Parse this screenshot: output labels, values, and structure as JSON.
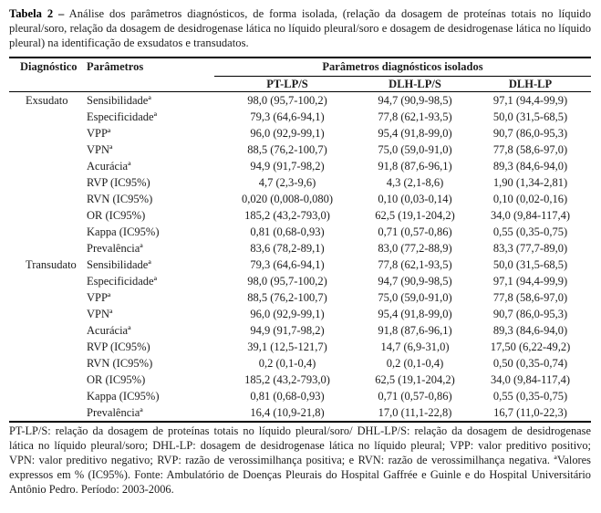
{
  "caption": {
    "label": "Tabela 2 –",
    "text": "Análise dos parâmetros diagnósticos, de forma isolada, (relação da dosagem de proteínas totais no líquido pleural/soro, relação da dosagem de desidrogenase lática no líquido pleural/soro e dosagem de desidrogenase lática no líquido pleural) na identificação de exsudatos e transudatos."
  },
  "table": {
    "header": {
      "diagnostico": "Diagnóstico",
      "parametros": "Parâmetros",
      "group_title": "Parâmetros diagnósticos isolados",
      "columns": [
        "PT-LP/S",
        "DLH-LP/S",
        "DLH-LP"
      ]
    },
    "groups": [
      {
        "diagnosis": "Exsudato",
        "rows": [
          {
            "param": "Sensibilidadeª",
            "values": [
              "98,0 (95,7-100,2)",
              "94,7 (90,9-98,5)",
              "97,1 (94,4-99,9)"
            ]
          },
          {
            "param": "Especificidadeª",
            "values": [
              "79,3 (64,6-94,1)",
              "77,8 (62,1-93,5)",
              "50,0 (31,5-68,5)"
            ]
          },
          {
            "param": "VPPª",
            "values": [
              "96,0 (92,9-99,1)",
              "95,4 (91,8-99,0)",
              "90,7 (86,0-95,3)"
            ]
          },
          {
            "param": "VPNª",
            "values": [
              "88,5 (76,2-100,7)",
              "75,0 (59,0-91,0)",
              "77,8 (58,6-97,0)"
            ]
          },
          {
            "param": "Acuráciaª",
            "values": [
              "94,9 (91,7-98,2)",
              "91,8 (87,6-96,1)",
              "89,3 (84,6-94,0)"
            ]
          },
          {
            "param": "RVP (IC95%)",
            "values": [
              "4,7 (2,3-9,6)",
              "4,3 (2,1-8,6)",
              "1,90 (1,34-2,81)"
            ]
          },
          {
            "param": "RVN (IC95%)",
            "values": [
              "0,020 (0,008-0,080)",
              "0,10 (0,03-0,14)",
              "0,10 (0,02-0,16)"
            ]
          },
          {
            "param": "OR (IC95%)",
            "values": [
              "185,2 (43,2-793,0)",
              "62,5 (19,1-204,2)",
              "34,0 (9,84-117,4)"
            ]
          },
          {
            "param": "Kappa (IC95%)",
            "values": [
              "0,81 (0,68-0,93)",
              "0,71 (0,57-0,86)",
              "0,55 (0,35-0,75)"
            ]
          },
          {
            "param": "Prevalênciaª",
            "values": [
              "83,6 (78,2-89,1)",
              "83,0 (77,2-88,9)",
              "83,3 (77,7-89,0)"
            ]
          }
        ]
      },
      {
        "diagnosis": "Transudato",
        "rows": [
          {
            "param": "Sensibilidadeª",
            "values": [
              "79,3 (64,6-94,1)",
              "77,8 (62,1-93,5)",
              "50,0 (31,5-68,5)"
            ]
          },
          {
            "param": "Especificidadeª",
            "values": [
              "98,0 (95,7-100,2)",
              "94,7 (90,9-98,5)",
              "97,1 (94,4-99,9)"
            ]
          },
          {
            "param": "VPPª",
            "values": [
              "88,5 (76,2-100,7)",
              "75,0 (59,0-91,0)",
              "77,8 (58,6-97,0)"
            ]
          },
          {
            "param": "VPNª",
            "values": [
              "96,0 (92,9-99,1)",
              "95,4 (91,8-99,0)",
              "90,7 (86,0-95,3)"
            ]
          },
          {
            "param": "Acuráciaª",
            "values": [
              "94,9 (91,7-98,2)",
              "91,8 (87,6-96,1)",
              "89,3 (84,6-94,0)"
            ]
          },
          {
            "param": "RVP (IC95%)",
            "values": [
              "39,1 (12,5-121,7)",
              "14,7 (6,9-31,0)",
              "17,50 (6,22-49,2)"
            ]
          },
          {
            "param": "RVN (IC95%)",
            "values": [
              "0,2 (0,1-0,4)",
              "0,2 (0,1-0,4)",
              "0,50 (0,35-0,74)"
            ]
          },
          {
            "param": "OR (IC95%)",
            "values": [
              "185,2 (43,2-793,0)",
              "62,5 (19,1-204,2)",
              "34,0 (9,84-117,4)"
            ]
          },
          {
            "param": "Kappa (IC95%)",
            "values": [
              "0,81 (0,68-0,93)",
              "0,71 (0,57-0,86)",
              "0,55 (0,35-0,75)"
            ]
          },
          {
            "param": "Prevalênciaª",
            "values": [
              "16,4 (10,9-21,8)",
              "17,0 (11,1-22,8)",
              "16,7 (11,0-22,3)"
            ]
          }
        ]
      }
    ]
  },
  "footnote": "PT-LP/S: relação da dosagem de proteínas totais no líquido pleural/soro/ DHL-LP/S: relação da dosagem de desidrogenase lática no líquido pleural/soro; DHL-LP: dosagem de desidrogenase lática no líquido pleural; VPP: valor preditivo positivo; VPN: valor preditivo negativo; RVP: razão de verossimilhança positiva; e RVN: razão de verossimilhança negativa. ªValores expressos em % (IC95%). Fonte: Ambulatório de Doenças Pleurais do Hospital Gaffrée e Guinle e do Hospital Universitário Antônio Pedro. Período: 2003-2006."
}
